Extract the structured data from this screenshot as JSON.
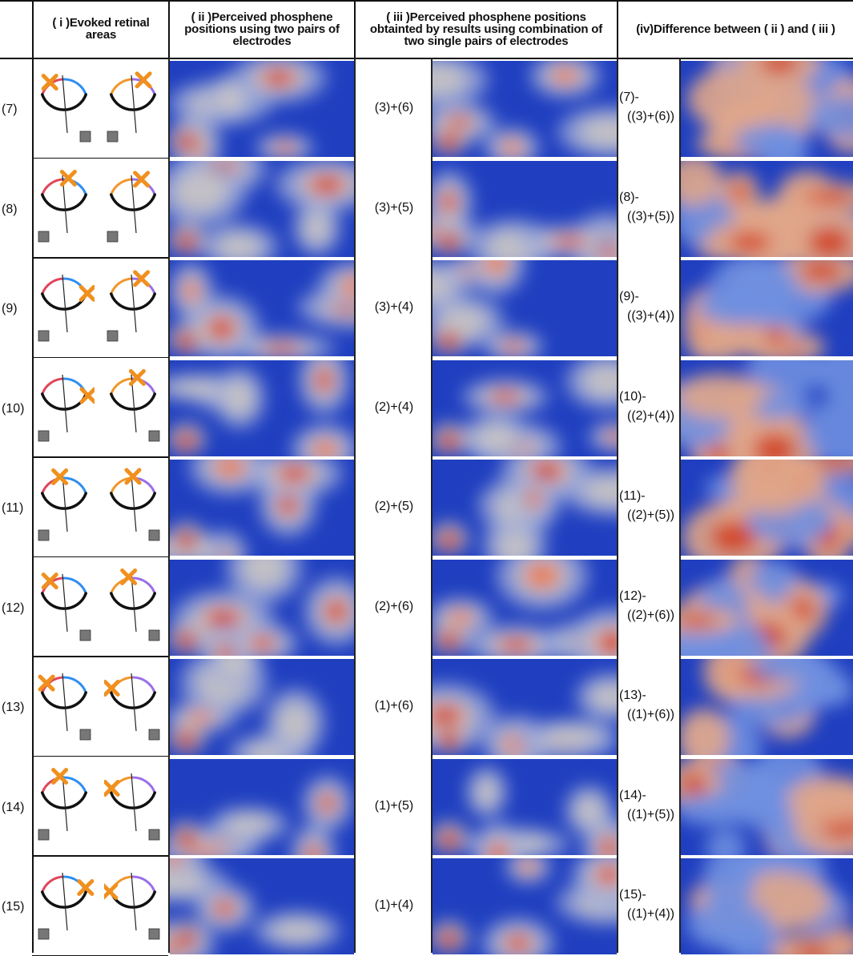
{
  "headers": {
    "col_i": "( i )Evoked retinal areas",
    "col_ii": "( ii )Perceived phosphene positions using two pairs of electrodes",
    "col_iii": "( iii )Perceived phosphene positions obtainted by results using combination of two single pairs of electrodes",
    "col_iv": "(iv)Difference between ( ii ) and ( iii )"
  },
  "rows": [
    {
      "label": "(7)",
      "combo": "(3)+(6)",
      "diff_line1": "(7)-",
      "diff_line2": "((3)+(6))"
    },
    {
      "label": "(8)",
      "combo": "(3)+(5)",
      "diff_line1": "(8)-",
      "diff_line2": "((3)+(5))"
    },
    {
      "label": "(9)",
      "combo": "(3)+(4)",
      "diff_line1": "(9)-",
      "diff_line2": "((3)+(4))"
    },
    {
      "label": "(10)",
      "combo": "(2)+(4)",
      "diff_line1": "(10)-",
      "diff_line2": "((2)+(4))"
    },
    {
      "label": "(11)",
      "combo": "(2)+(5)",
      "diff_line1": "(11)-",
      "diff_line2": "((2)+(5))"
    },
    {
      "label": "(12)",
      "combo": "(2)+(6)",
      "diff_line1": "(12)-",
      "diff_line2": "((2)+(6))"
    },
    {
      "label": "(13)",
      "combo": "(1)+(6)",
      "diff_line1": "(13)-",
      "diff_line2": "((1)+(6))"
    },
    {
      "label": "(14)",
      "combo": "(1)+(5)",
      "diff_line1": "(14)-",
      "diff_line2": "((1)+(5))"
    },
    {
      "label": "(15)",
      "combo": "(1)+(4)",
      "diff_line1": "(15)-",
      "diff_line2": "((1)+(4))"
    }
  ],
  "colors": {
    "heat_low": "#1f3fc0",
    "heat_mid": "#c9c4c4",
    "heat_high": "#c8140e",
    "marker": "#f0901e",
    "arc_red": "#e0465a",
    "arc_blue": "#2f8ef0",
    "arc_orange": "#f2962b",
    "arc_purple": "#9b6ee8",
    "rule": "#111111"
  }
}
